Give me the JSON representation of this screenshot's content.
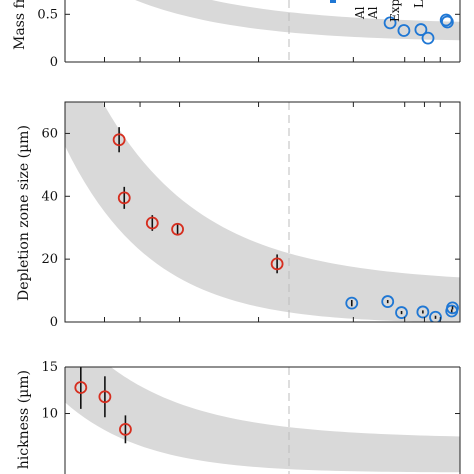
{
  "chart_data": [
    {
      "type": "scatter",
      "ylabel": "Mass fr",
      "yticks": [
        0,
        0.5
      ],
      "ylim": [
        0,
        1.0
      ],
      "xlim": [
        0,
        1
      ],
      "visible_labels": [
        "Al",
        "Al",
        "Exp",
        "L"
      ],
      "series": [
        {
          "color": "#1f77d4",
          "points": [
            [
              0.823,
              0.41
            ],
            [
              0.858,
              0.33
            ],
            [
              0.901,
              0.34
            ],
            [
              0.919,
              0.25
            ],
            [
              0.965,
              0.44
            ],
            [
              0.968,
              0.42
            ]
          ]
        }
      ],
      "grid": false
    },
    {
      "type": "scatter",
      "ylabel": "Depletion zone size (µm)",
      "yticks": [
        0,
        20,
        40,
        60
      ],
      "ylim": [
        0,
        70
      ],
      "xlim": [
        0,
        1
      ],
      "series": [
        {
          "color": "#d62e1f",
          "points": [
            {
              "x": 0.137,
              "y": 58,
              "err": 4
            },
            {
              "x": 0.15,
              "y": 39.5,
              "err": 3.5
            },
            {
              "x": 0.221,
              "y": 31.5,
              "err": 2.5
            },
            {
              "x": 0.285,
              "y": 29.5,
              "err": 1.5
            },
            {
              "x": 0.537,
              "y": 18.5,
              "err": 3
            }
          ]
        },
        {
          "color": "#1f77d4",
          "points": [
            {
              "x": 0.726,
              "y": 6,
              "err": 1
            },
            {
              "x": 0.817,
              "y": 6.5,
              "err": 0.5
            },
            {
              "x": 0.852,
              "y": 3,
              "err": 0.5
            },
            {
              "x": 0.906,
              "y": 3.2,
              "err": 0.5
            },
            {
              "x": 0.938,
              "y": 1.5,
              "err": 0.5
            },
            {
              "x": 0.979,
              "y": 3.5,
              "err": 0.5
            },
            {
              "x": 0.981,
              "y": 4.5,
              "err": 0.5
            }
          ]
        }
      ],
      "grid": false
    },
    {
      "type": "scatter",
      "ylabel": "hickness (µm)",
      "yticks": [
        10,
        15
      ],
      "ylim": [
        5,
        15
      ],
      "xlim": [
        0,
        1
      ],
      "series": [
        {
          "color": "#d62e1f",
          "points": [
            {
              "x": 0.04,
              "y": 12.8,
              "err": 2.3
            },
            {
              "x": 0.101,
              "y": 11.8,
              "err": 2.2
            },
            {
              "x": 0.153,
              "y": 8.3,
              "err": 1.5
            }
          ]
        }
      ],
      "grid": false
    }
  ],
  "labels": {
    "top_ylabel": "Mass fr",
    "mid_ylabel": "Depletion zone size (µm)",
    "bot_ylabel": "hickness (µm)",
    "crop_labels": [
      "Al",
      "Al",
      "Exp",
      "L"
    ]
  },
  "colors": {
    "red": "#d62e1f",
    "blue": "#1f77d4",
    "band": "#d9d9d9",
    "axis": "#222222",
    "dashed": "#bdbdbd"
  }
}
